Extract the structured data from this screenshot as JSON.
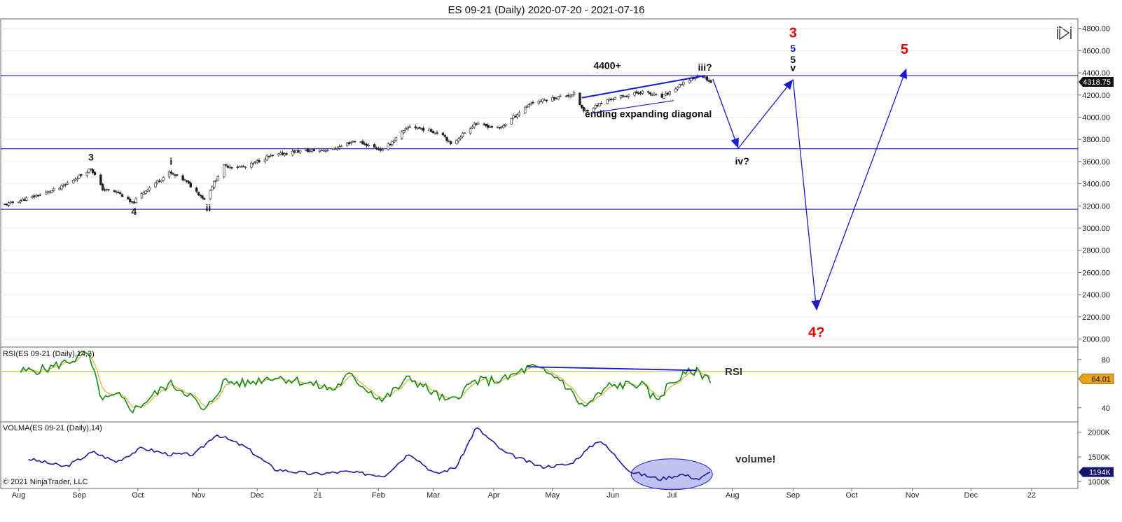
{
  "title": "ES 09-21 (Daily)  2020-07-20 - 2021-07-16",
  "copyright": "© 2021 NinjaTrader, LLC",
  "colors": {
    "up_candle": "#ffffff",
    "down_candle": "#222222",
    "hline": "#1a1ad0",
    "rsi_line": "#138a13",
    "rsi_signal": "#d4a017",
    "rsi_level": "#b5cc3c",
    "volma_line": "#1a1aa0",
    "annotation_blue": "#1a1ad0",
    "annotation_red": "#e00000",
    "ellipse_fill": "#8f8fe6"
  },
  "chart_data": [
    {
      "type": "candlestick",
      "title": "ES 09-21 (Daily)  2020-07-20 - 2021-07-16",
      "x_ticks": [
        "Aug",
        "Sep",
        "Oct",
        "Nov",
        "Dec",
        "21",
        "Feb",
        "Mar",
        "Apr",
        "May",
        "Jun",
        "Jul",
        "Aug",
        "Sep",
        "Oct",
        "Nov",
        "Dec",
        "22"
      ],
      "y_ticks": [
        "2000.00",
        "2200.00",
        "2400.00",
        "2600.00",
        "2800.00",
        "3000.00",
        "3200.00",
        "3400.00",
        "3600.00",
        "3800.00",
        "4000.00",
        "4200.00",
        "4400.00",
        "4600.00",
        "4800.00"
      ],
      "ylim": [
        1940,
        4880
      ],
      "last_price": "4318.75",
      "horizontal_lines": [
        4375,
        3715,
        3170
      ],
      "close_path": [
        [
          "2020-07-20",
          3210
        ],
        [
          "2020-08-03",
          3280
        ],
        [
          "2020-08-17",
          3360
        ],
        [
          "2020-08-28",
          3480
        ],
        [
          "2020-09-02",
          3540
        ],
        [
          "2020-09-08",
          3350
        ],
        [
          "2020-09-16",
          3320
        ],
        [
          "2020-09-23",
          3220
        ],
        [
          "2020-09-30",
          3340
        ],
        [
          "2020-10-12",
          3500
        ],
        [
          "2020-10-20",
          3430
        ],
        [
          "2020-10-30",
          3260
        ],
        [
          "2020-11-09",
          3560
        ],
        [
          "2020-11-20",
          3550
        ],
        [
          "2020-12-01",
          3640
        ],
        [
          "2020-12-15",
          3690
        ],
        [
          "2021-01-04",
          3710
        ],
        [
          "2021-01-15",
          3790
        ],
        [
          "2021-01-29",
          3700
        ],
        [
          "2021-02-12",
          3920
        ],
        [
          "2021-03-01",
          3850
        ],
        [
          "2021-03-05",
          3750
        ],
        [
          "2021-03-17",
          3940
        ],
        [
          "2021-03-30",
          3900
        ],
        [
          "2021-04-15",
          4130
        ],
        [
          "2021-05-07",
          4210
        ],
        [
          "2021-05-12",
          4050
        ],
        [
          "2021-05-25",
          4160
        ],
        [
          "2021-06-11",
          4230
        ],
        [
          "2021-06-21",
          4180
        ],
        [
          "2021-07-06",
          4350
        ],
        [
          "2021-07-12",
          4370
        ],
        [
          "2021-07-16",
          4318.75
        ]
      ],
      "annotations": [
        {
          "text": "3",
          "date": "2020-09-02",
          "price": 3610,
          "style": "black"
        },
        {
          "text": "4",
          "date": "2020-09-24",
          "price": 3120,
          "style": "black"
        },
        {
          "text": "i",
          "date": "2020-10-13",
          "price": 3570,
          "style": "black"
        },
        {
          "text": "ii",
          "date": "2020-11-01",
          "price": 3150,
          "style": "black"
        },
        {
          "text": "4400+",
          "date": "2021-05-24",
          "price": 4435,
          "style": "black"
        },
        {
          "text": "iii?",
          "date": "2021-07-13",
          "price": 4420,
          "style": "black"
        },
        {
          "text": "ending expanding diagonal",
          "date": "2021-06-14",
          "price": 4000,
          "style": "black"
        },
        {
          "text": "iv?",
          "date": "2021-08-01",
          "price": 3575,
          "style": "black"
        },
        {
          "text": "3",
          "date": "2021-08-27",
          "price": 4720,
          "style": "red"
        },
        {
          "text": "5",
          "date": "2021-08-27",
          "price": 4590,
          "style": "blue"
        },
        {
          "text": "5",
          "date": "2021-08-27",
          "price": 4490,
          "style": "black"
        },
        {
          "text": "v",
          "date": "2021-08-27",
          "price": 4415,
          "style": "black"
        },
        {
          "text": "5",
          "date": "2021-10-23",
          "price": 4570,
          "style": "red"
        },
        {
          "text": "4?",
          "date": "2021-09-08",
          "price": 2020,
          "style": "red"
        }
      ],
      "projection_path": [
        [
          "2021-07-17",
          4345
        ],
        [
          "2021-07-30",
          3720
        ],
        [
          "2021-08-27",
          4340
        ],
        [
          "2021-09-08",
          2260
        ],
        [
          "2021-10-24",
          4440
        ]
      ],
      "wedge_upper": [
        [
          "2021-05-11",
          4175
        ],
        [
          "2021-07-13",
          4375
        ]
      ],
      "wedge_lower": [
        [
          "2021-05-17",
          4040
        ],
        [
          "2021-06-27",
          4150
        ]
      ]
    },
    {
      "type": "line",
      "title": "RSI(ES 09-21 (Daily),14,3)",
      "label": "RSI",
      "y_ticks": [
        "40",
        "80"
      ],
      "ylim": [
        30,
        88
      ],
      "last_value": "64.01",
      "level": 70,
      "series": [
        {
          "name": "RSI",
          "values": [
            [
              "2020-07-28",
              70
            ],
            [
              "2020-08-10",
              72
            ],
            [
              "2020-08-24",
              80
            ],
            [
              "2020-08-31",
              86
            ],
            [
              "2020-09-08",
              46
            ],
            [
              "2020-09-16",
              50
            ],
            [
              "2020-09-24",
              38
            ],
            [
              "2020-10-02",
              48
            ],
            [
              "2020-10-12",
              60
            ],
            [
              "2020-10-22",
              52
            ],
            [
              "2020-10-30",
              36
            ],
            [
              "2020-11-09",
              62
            ],
            [
              "2020-11-20",
              60
            ],
            [
              "2020-12-04",
              66
            ],
            [
              "2020-12-18",
              62
            ],
            [
              "2021-01-04",
              55
            ],
            [
              "2021-01-12",
              67
            ],
            [
              "2021-01-29",
              46
            ],
            [
              "2021-02-12",
              65
            ],
            [
              "2021-03-04",
              44
            ],
            [
              "2021-03-17",
              62
            ],
            [
              "2021-04-01",
              63
            ],
            [
              "2021-04-15",
              74
            ],
            [
              "2021-04-30",
              64
            ],
            [
              "2021-05-12",
              40
            ],
            [
              "2021-05-25",
              58
            ],
            [
              "2021-06-10",
              60
            ],
            [
              "2021-06-18",
              46
            ],
            [
              "2021-06-25",
              60
            ],
            [
              "2021-07-07",
              71
            ],
            [
              "2021-07-16",
              64.01
            ]
          ]
        }
      ],
      "trendline": [
        [
          "2021-04-13",
          74
        ],
        [
          "2021-07-09",
          71
        ]
      ]
    },
    {
      "type": "line",
      "title": "VOLMA(ES 09-21 (Daily),14)",
      "label": "volume!",
      "y_ticks": [
        "1000K",
        "1500K",
        "2000K"
      ],
      "ylim": [
        920,
        2150
      ],
      "last_value": "1194K",
      "series": [
        {
          "name": "VOLMA",
          "values": [
            [
              "2020-08-01",
              1460
            ],
            [
              "2020-08-20",
              1300
            ],
            [
              "2020-09-03",
              1600
            ],
            [
              "2020-09-15",
              1400
            ],
            [
              "2020-09-28",
              1680
            ],
            [
              "2020-10-12",
              1550
            ],
            [
              "2020-10-25",
              1550
            ],
            [
              "2020-11-05",
              1960
            ],
            [
              "2020-11-20",
              1700
            ],
            [
              "2020-12-05",
              1250
            ],
            [
              "2020-12-25",
              1150
            ],
            [
              "2021-01-10",
              1200
            ],
            [
              "2021-01-30",
              1120
            ],
            [
              "2021-02-12",
              1580
            ],
            [
              "2021-02-25",
              1150
            ],
            [
              "2021-03-08",
              1300
            ],
            [
              "2021-03-18",
              2100
            ],
            [
              "2021-04-01",
              1600
            ],
            [
              "2021-04-20",
              1300
            ],
            [
              "2021-05-05",
              1350
            ],
            [
              "2021-05-20",
              1850
            ],
            [
              "2021-06-05",
              1200
            ],
            [
              "2021-06-20",
              1050
            ],
            [
              "2021-07-01",
              1150
            ],
            [
              "2021-07-10",
              1050
            ],
            [
              "2021-07-16",
              1194
            ]
          ]
        }
      ]
    }
  ]
}
